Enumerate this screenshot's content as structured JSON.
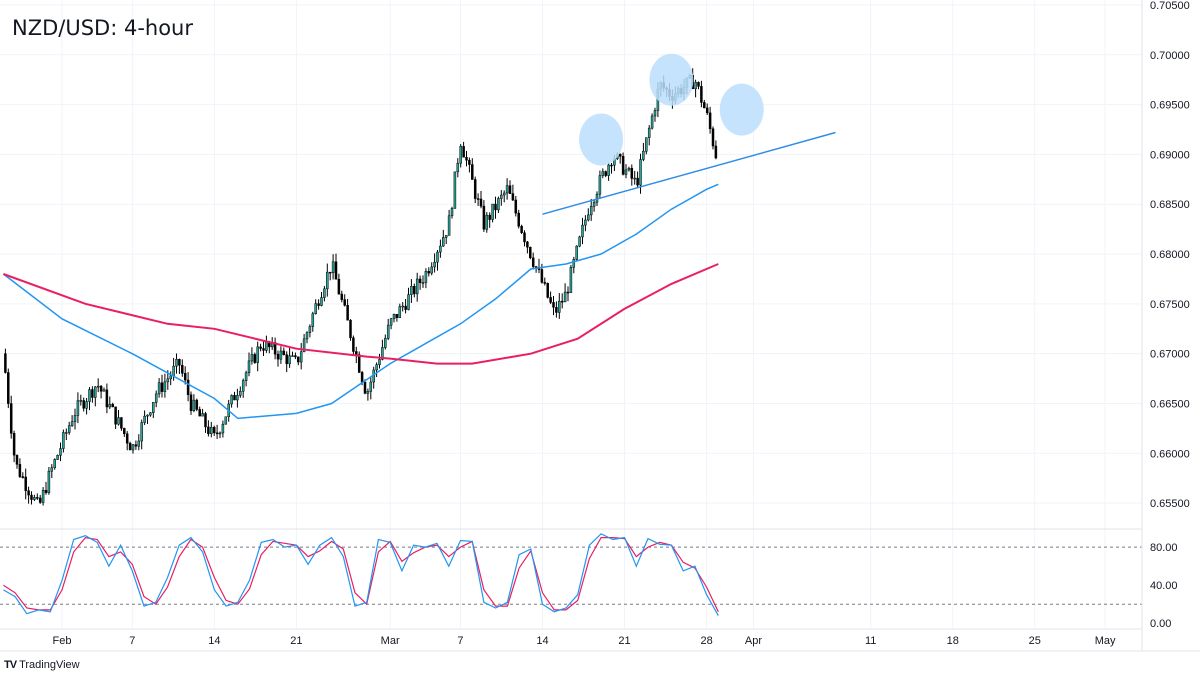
{
  "header": {
    "title": "NZD/USD: 4-hour"
  },
  "footer": {
    "brand": "TradingView",
    "brand_icon": "tradingview-logo-icon"
  },
  "colors": {
    "up_candle": "#26a69a",
    "candle_body": "#000000",
    "sma_fast": "#2196f3",
    "sma_slow": "#e91e63",
    "trendline": "#2f8ce6",
    "marker_fill": "#bbdefb",
    "stoch_k": "#2196f3",
    "stoch_d": "#e91e63",
    "grid": "#f0f3fa"
  },
  "chart_data": [
    {
      "type": "candlestick",
      "title": "NZD/USD: 4-hour",
      "ylim": [
        0.6525,
        0.7055
      ],
      "y_ticks": [
        "0.70500",
        "0.70000",
        "0.69500",
        "0.69000",
        "0.68500",
        "0.68000",
        "0.67500",
        "0.67000",
        "0.66500",
        "0.66000",
        "0.65500"
      ],
      "x_ticks": [
        "Feb",
        "7",
        "14",
        "21",
        "Mar",
        "7",
        "14",
        "21",
        "28",
        "Apr",
        "11",
        "18",
        "25",
        "May"
      ],
      "x_tick_dates": [
        "2022-02-01",
        "2022-02-07",
        "2022-02-14",
        "2022-02-21",
        "2022-03-01",
        "2022-03-07",
        "2022-03-14",
        "2022-03-21",
        "2022-03-28",
        "2022-04-01",
        "2022-04-11",
        "2022-04-18",
        "2022-04-25",
        "2022-05-01"
      ],
      "price_path": [
        [
          "2022-01-27",
          0.67
        ],
        [
          "2022-01-28",
          0.659
        ],
        [
          "2022-01-30",
          0.6545
        ],
        [
          "2022-01-31",
          0.658
        ],
        [
          "2022-02-02",
          0.664
        ],
        [
          "2022-02-04",
          0.667
        ],
        [
          "2022-02-07",
          0.6605
        ],
        [
          "2022-02-09",
          0.666
        ],
        [
          "2022-02-11",
          0.669
        ],
        [
          "2022-02-12",
          0.665
        ],
        [
          "2022-02-14",
          0.6615
        ],
        [
          "2022-02-16",
          0.6665
        ],
        [
          "2022-02-18",
          0.671
        ],
        [
          "2022-02-21",
          0.669
        ],
        [
          "2022-02-23",
          0.676
        ],
        [
          "2022-02-24",
          0.679
        ],
        [
          "2022-02-27",
          0.666
        ],
        [
          "2022-03-01",
          0.673
        ],
        [
          "2022-03-04",
          0.678
        ],
        [
          "2022-03-06",
          0.683
        ],
        [
          "2022-03-07",
          0.6915
        ],
        [
          "2022-03-09",
          0.683
        ],
        [
          "2022-03-11",
          0.6865
        ],
        [
          "2022-03-13",
          0.68
        ],
        [
          "2022-03-15",
          0.674
        ],
        [
          "2022-03-16",
          0.676
        ],
        [
          "2022-03-18",
          0.685
        ],
        [
          "2022-03-20",
          0.69
        ],
        [
          "2022-03-22",
          0.687
        ],
        [
          "2022-03-24",
          0.697
        ],
        [
          "2022-03-25",
          0.696
        ],
        [
          "2022-03-27",
          0.6975
        ],
        [
          "2022-03-28",
          0.694
        ],
        [
          "2022-03-29",
          0.689
        ]
      ],
      "series": [
        {
          "values": [
            [
              "2022-01-27",
              0.678
            ],
            [
              "2022-02-01",
              0.6735
            ],
            [
              "2022-02-07",
              0.67
            ],
            [
              "2022-02-14",
              0.6655
            ],
            [
              "2022-02-16",
              0.6635
            ],
            [
              "2022-02-21",
              0.664
            ],
            [
              "2022-02-24",
              0.665
            ],
            [
              "2022-03-01",
              0.669
            ],
            [
              "2022-03-04",
              0.671
            ],
            [
              "2022-03-07",
              0.673
            ],
            [
              "2022-03-10",
              0.6755
            ],
            [
              "2022-03-13",
              0.6785
            ],
            [
              "2022-03-16",
              0.679
            ],
            [
              "2022-03-19",
              0.68
            ],
            [
              "2022-03-22",
              0.682
            ],
            [
              "2022-03-25",
              0.6845
            ],
            [
              "2022-03-28",
              0.6865
            ],
            [
              "2022-03-29",
              0.687
            ]
          ]
        },
        {
          "values": [
            [
              "2022-01-27",
              0.678
            ],
            [
              "2022-02-03",
              0.675
            ],
            [
              "2022-02-10",
              0.673
            ],
            [
              "2022-02-14",
              0.6725
            ],
            [
              "2022-02-21",
              0.6705
            ],
            [
              "2022-02-27",
              0.6697
            ],
            [
              "2022-03-01",
              0.6695
            ],
            [
              "2022-03-05",
              0.669
            ],
            [
              "2022-03-08",
              0.669
            ],
            [
              "2022-03-13",
              0.67
            ],
            [
              "2022-03-17",
              0.6715
            ],
            [
              "2022-03-21",
              0.6745
            ],
            [
              "2022-03-25",
              0.677
            ],
            [
              "2022-03-29",
              0.679
            ]
          ]
        }
      ],
      "trendline": [
        [
          "2022-03-14",
          0.684
        ],
        [
          "2022-04-08",
          0.6922
        ]
      ],
      "markers": [
        {
          "date": "2022-03-19",
          "value": 0.6915
        },
        {
          "date": "2022-03-25",
          "value": 0.6975
        },
        {
          "date": "2022-03-31",
          "value": 0.6945
        }
      ]
    },
    {
      "type": "line",
      "ylim": [
        -5,
        98
      ],
      "y_ticks": [
        "80.00",
        "40.00",
        "0.00"
      ],
      "ref_lines": [
        80,
        20
      ],
      "x_ticks": [
        "Feb",
        "7",
        "14",
        "21",
        "Mar",
        "7",
        "14",
        "21",
        "28",
        "Apr",
        "11",
        "18",
        "25",
        "May"
      ],
      "k_path": [
        [
          "2022-01-27",
          35
        ],
        [
          "2022-01-28",
          28
        ],
        [
          "2022-01-29",
          10
        ],
        [
          "2022-01-30",
          14
        ],
        [
          "2022-01-31",
          12
        ],
        [
          "2022-02-01",
          45
        ],
        [
          "2022-02-02",
          88
        ],
        [
          "2022-02-03",
          92
        ],
        [
          "2022-02-04",
          85
        ],
        [
          "2022-02-05",
          60
        ],
        [
          "2022-02-06",
          82
        ],
        [
          "2022-02-07",
          55
        ],
        [
          "2022-02-08",
          18
        ],
        [
          "2022-02-09",
          22
        ],
        [
          "2022-02-10",
          48
        ],
        [
          "2022-02-11",
          82
        ],
        [
          "2022-02-12",
          90
        ],
        [
          "2022-02-13",
          75
        ],
        [
          "2022-02-14",
          35
        ],
        [
          "2022-02-15",
          18
        ],
        [
          "2022-02-16",
          22
        ],
        [
          "2022-02-17",
          45
        ],
        [
          "2022-02-18",
          85
        ],
        [
          "2022-02-19",
          88
        ],
        [
          "2022-02-20",
          80
        ],
        [
          "2022-02-21",
          82
        ],
        [
          "2022-02-22",
          62
        ],
        [
          "2022-02-23",
          82
        ],
        [
          "2022-02-24",
          90
        ],
        [
          "2022-02-25",
          70
        ],
        [
          "2022-02-26",
          18
        ],
        [
          "2022-02-27",
          22
        ],
        [
          "2022-02-28",
          88
        ],
        [
          "2022-03-01",
          85
        ],
        [
          "2022-03-02",
          55
        ],
        [
          "2022-03-03",
          82
        ],
        [
          "2022-03-04",
          80
        ],
        [
          "2022-03-05",
          84
        ],
        [
          "2022-03-06",
          60
        ],
        [
          "2022-03-07",
          87
        ],
        [
          "2022-03-08",
          86
        ],
        [
          "2022-03-09",
          22
        ],
        [
          "2022-03-10",
          16
        ],
        [
          "2022-03-11",
          22
        ],
        [
          "2022-03-12",
          72
        ],
        [
          "2022-03-13",
          78
        ],
        [
          "2022-03-14",
          20
        ],
        [
          "2022-03-15",
          12
        ],
        [
          "2022-03-16",
          16
        ],
        [
          "2022-03-17",
          30
        ],
        [
          "2022-03-18",
          82
        ],
        [
          "2022-03-19",
          94
        ],
        [
          "2022-03-20",
          88
        ],
        [
          "2022-03-21",
          90
        ],
        [
          "2022-03-22",
          60
        ],
        [
          "2022-03-23",
          89
        ],
        [
          "2022-03-24",
          83
        ],
        [
          "2022-03-25",
          82
        ],
        [
          "2022-03-26",
          55
        ],
        [
          "2022-03-27",
          60
        ],
        [
          "2022-03-28",
          30
        ],
        [
          "2022-03-29",
          8
        ]
      ],
      "d_path": [
        [
          "2022-01-27",
          40
        ],
        [
          "2022-01-28",
          32
        ],
        [
          "2022-01-29",
          16
        ],
        [
          "2022-01-30",
          14
        ],
        [
          "2022-01-31",
          14
        ],
        [
          "2022-02-01",
          35
        ],
        [
          "2022-02-02",
          75
        ],
        [
          "2022-02-03",
          90
        ],
        [
          "2022-02-04",
          88
        ],
        [
          "2022-02-05",
          70
        ],
        [
          "2022-02-06",
          75
        ],
        [
          "2022-02-07",
          62
        ],
        [
          "2022-02-08",
          28
        ],
        [
          "2022-02-09",
          20
        ],
        [
          "2022-02-10",
          38
        ],
        [
          "2022-02-11",
          70
        ],
        [
          "2022-02-12",
          88
        ],
        [
          "2022-02-13",
          80
        ],
        [
          "2022-02-14",
          48
        ],
        [
          "2022-02-15",
          24
        ],
        [
          "2022-02-16",
          20
        ],
        [
          "2022-02-17",
          36
        ],
        [
          "2022-02-18",
          72
        ],
        [
          "2022-02-19",
          86
        ],
        [
          "2022-02-20",
          84
        ],
        [
          "2022-02-21",
          82
        ],
        [
          "2022-02-22",
          70
        ],
        [
          "2022-02-23",
          76
        ],
        [
          "2022-02-24",
          86
        ],
        [
          "2022-02-25",
          78
        ],
        [
          "2022-02-26",
          32
        ],
        [
          "2022-02-27",
          20
        ],
        [
          "2022-02-28",
          75
        ],
        [
          "2022-03-01",
          86
        ],
        [
          "2022-03-02",
          65
        ],
        [
          "2022-03-03",
          74
        ],
        [
          "2022-03-04",
          80
        ],
        [
          "2022-03-05",
          82
        ],
        [
          "2022-03-06",
          70
        ],
        [
          "2022-03-07",
          80
        ],
        [
          "2022-03-08",
          86
        ],
        [
          "2022-03-09",
          35
        ],
        [
          "2022-03-10",
          18
        ],
        [
          "2022-03-11",
          18
        ],
        [
          "2022-03-12",
          58
        ],
        [
          "2022-03-13",
          76
        ],
        [
          "2022-03-14",
          32
        ],
        [
          "2022-03-15",
          14
        ],
        [
          "2022-03-16",
          14
        ],
        [
          "2022-03-17",
          24
        ],
        [
          "2022-03-18",
          68
        ],
        [
          "2022-03-19",
          90
        ],
        [
          "2022-03-20",
          90
        ],
        [
          "2022-03-21",
          89
        ],
        [
          "2022-03-22",
          70
        ],
        [
          "2022-03-23",
          80
        ],
        [
          "2022-03-24",
          85
        ],
        [
          "2022-03-25",
          82
        ],
        [
          "2022-03-26",
          64
        ],
        [
          "2022-03-27",
          58
        ],
        [
          "2022-03-28",
          38
        ],
        [
          "2022-03-29",
          12
        ]
      ]
    }
  ]
}
